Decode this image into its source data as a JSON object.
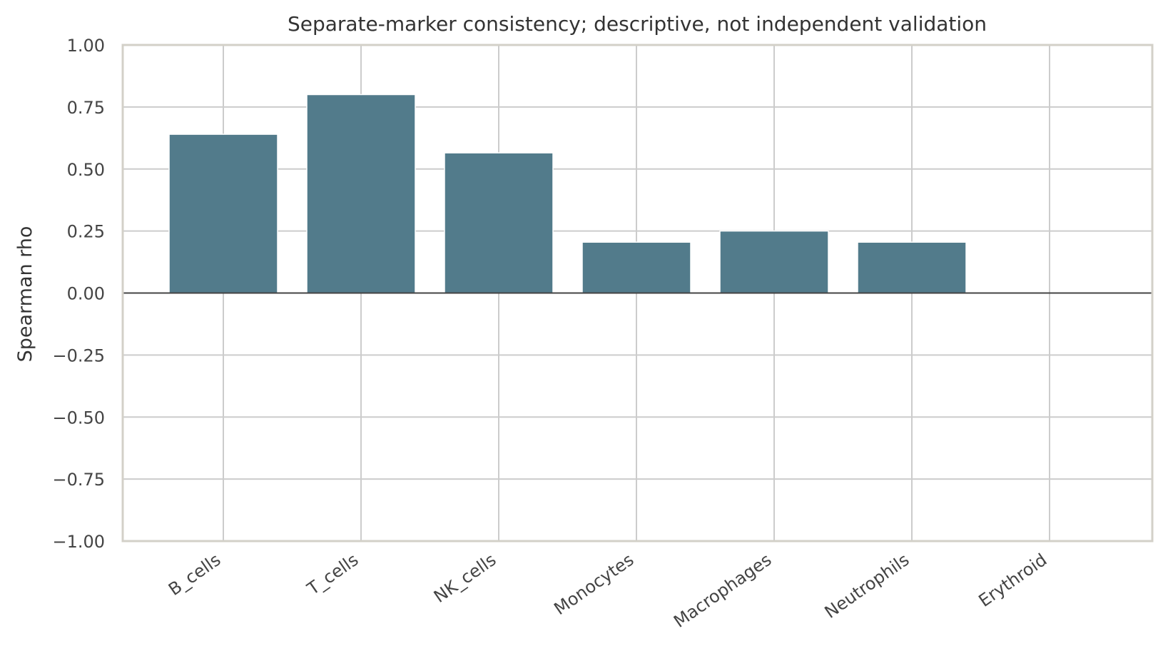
{
  "chart_data": {
    "type": "bar",
    "title": "Separate-marker consistency; descriptive, not independent validation",
    "xlabel": "",
    "ylabel": "Spearman rho",
    "categories": [
      "B_cells",
      "T_cells",
      "NK_cells",
      "Monocytes",
      "Macrophages",
      "Neutrophils",
      "Erythroid"
    ],
    "values": [
      0.64,
      0.8,
      0.565,
      0.205,
      0.25,
      0.205,
      0.0
    ],
    "ylim": [
      -1.0,
      1.0
    ],
    "yticks": [
      1.0,
      0.75,
      0.5,
      0.25,
      0.0,
      -0.25,
      -0.5,
      -0.75,
      -1.0
    ],
    "ytick_labels": [
      "1.00",
      "0.75",
      "0.50",
      "0.25",
      "0.00",
      "−0.25",
      "−0.50",
      "−0.75",
      "−1.00"
    ],
    "grid": true,
    "zero_line": true,
    "bar_color": "#527b8b",
    "legend": "none"
  }
}
